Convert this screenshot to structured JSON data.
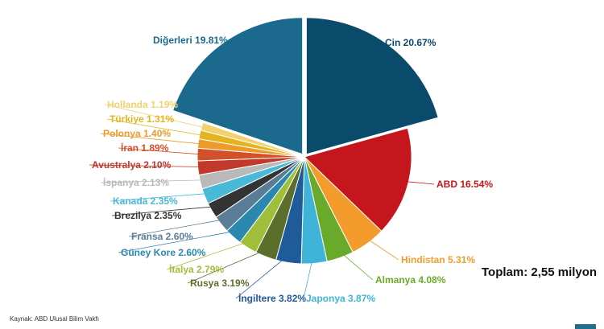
{
  "chart_data": {
    "type": "pie",
    "title": "",
    "slices": [
      {
        "label": "Çin 20.67%",
        "value": 20.67,
        "color": "#0a4a6b",
        "exploded": true
      },
      {
        "label": "ABD 16.54%",
        "value": 16.54,
        "color": "#c4161c",
        "exploded": false
      },
      {
        "label": "Hindistan 5.31%",
        "value": 5.31,
        "color": "#f39c2c",
        "exploded": false
      },
      {
        "label": "Almanya 4.08%",
        "value": 4.08,
        "color": "#6aaa2a",
        "exploded": false
      },
      {
        "label": "Japonya 3.87%",
        "value": 3.87,
        "color": "#3fb4d8",
        "exploded": false
      },
      {
        "label": "İngiltere 3.82%",
        "value": 3.82,
        "color": "#1f5a99",
        "exploded": false
      },
      {
        "label": "Rusya 3.19%",
        "value": 3.19,
        "color": "#5b6e2b",
        "exploded": false
      },
      {
        "label": "İtalya 2.79%",
        "value": 2.79,
        "color": "#9fbf3a",
        "exploded": false
      },
      {
        "label": "Güney Kore 2.60%",
        "value": 2.6,
        "color": "#2a88b0",
        "exploded": false
      },
      {
        "label": "Fransa 2.60%",
        "value": 2.6,
        "color": "#5a7d95",
        "exploded": false
      },
      {
        "label": "Brezilya 2.35%",
        "value": 2.35,
        "color": "#333333",
        "exploded": false
      },
      {
        "label": "Kanada 2.35%",
        "value": 2.35,
        "color": "#48b9d6",
        "exploded": false
      },
      {
        "label": "İspanya 2.13%",
        "value": 2.13,
        "color": "#b9b9b9",
        "exploded": false
      },
      {
        "label": "Avustralya 2.10%",
        "value": 2.1,
        "color": "#c0392b",
        "exploded": false
      },
      {
        "label": "İran 1.89%",
        "value": 1.89,
        "color": "#d4502a",
        "exploded": false
      },
      {
        "label": "Polonya 1.40%",
        "value": 1.4,
        "color": "#ec9a2a",
        "exploded": false
      },
      {
        "label": "Türkiye 1.31%",
        "value": 1.31,
        "color": "#e3b41f",
        "exploded": false
      },
      {
        "label": "Hollanda 1.19%",
        "value": 1.19,
        "color": "#f2d26e",
        "exploded": false
      },
      {
        "label": "Diğerleri 19.81%",
        "value": 19.81,
        "color": "#1b6a8e",
        "exploded": true
      }
    ]
  },
  "total_label": "Toplam: 2,55 milyon",
  "source_label": "Kaynak: ABD Ulusal Bilim Vakfı",
  "colors": {
    "background": "#ffffff",
    "corner_mark": "#1f6f8b"
  }
}
